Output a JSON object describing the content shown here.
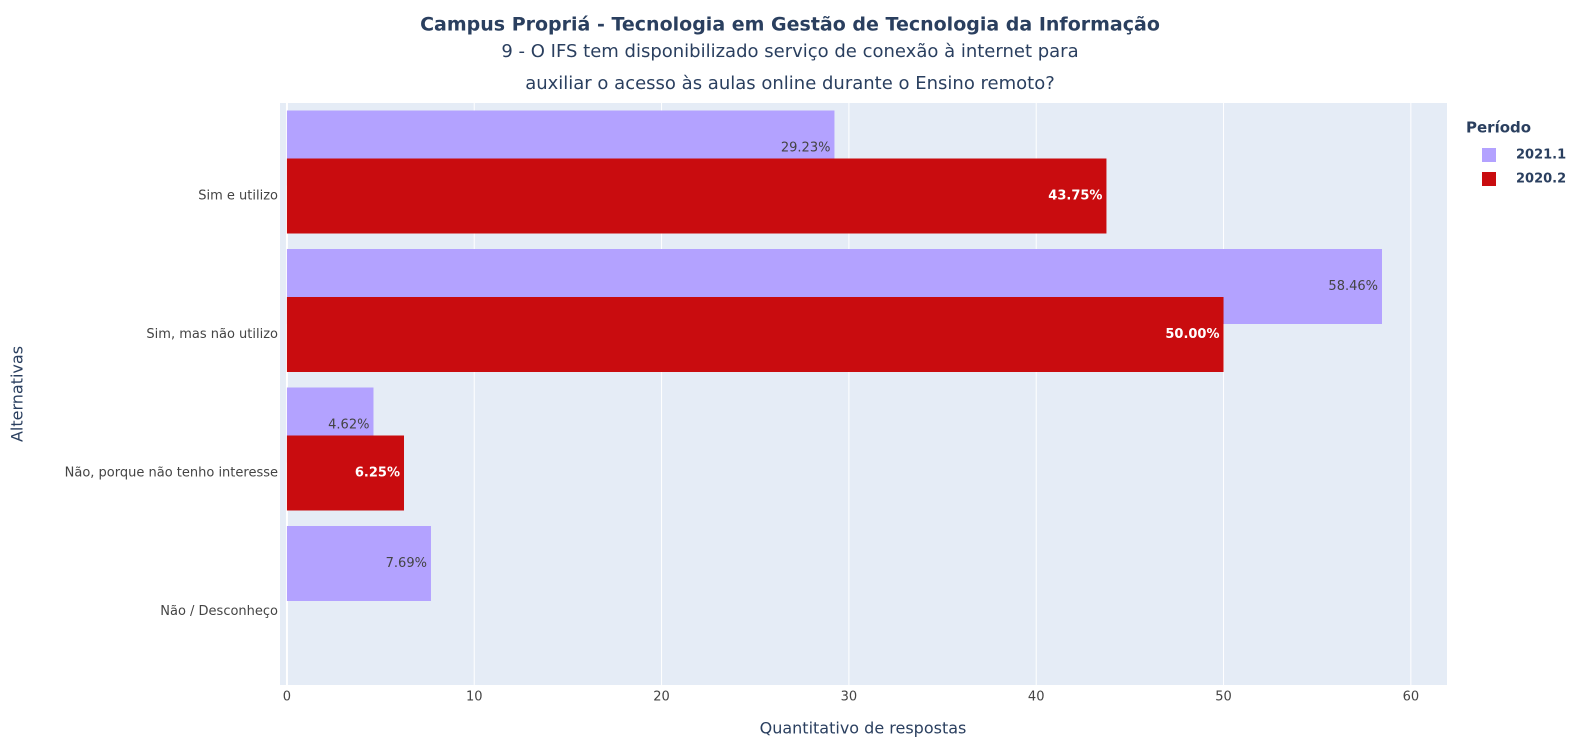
{
  "chart_data": {
    "type": "bar",
    "orientation": "horizontal",
    "title": "Campus Propriá - Tecnologia em Gestão de Tecnologia da Informação",
    "subtitle": [
      "9 - O IFS tem disponibilizado serviço de conexão à internet para",
      "auxiliar o acesso às aulas online durante o Ensino remoto?"
    ],
    "xlabel": "Quantitativo de respostas",
    "ylabel": "Alternativas",
    "categories": [
      "Sim e utilizo",
      "Sim, mas não utilizo",
      "Não, porque não tenho interesse",
      "Não / Desconheço"
    ],
    "series": [
      {
        "name": "2021.1",
        "color": "#b3a2ff",
        "values": [
          29.23,
          58.46,
          4.62,
          7.69
        ],
        "value_labels": [
          "29.23%",
          "58.46%",
          "4.62%",
          "7.69%"
        ]
      },
      {
        "name": "2020.2",
        "color": "#c90c0f",
        "values": [
          43.75,
          50.0,
          6.25,
          null
        ],
        "value_labels": [
          "43.75%",
          "50.00%",
          "6.25%",
          null
        ]
      }
    ],
    "legend_title": "Período",
    "legend": "right",
    "xlim": [
      -0.37,
      61.93
    ],
    "xticks": [
      0,
      10,
      20,
      30,
      40,
      50,
      60
    ],
    "grid": true
  }
}
